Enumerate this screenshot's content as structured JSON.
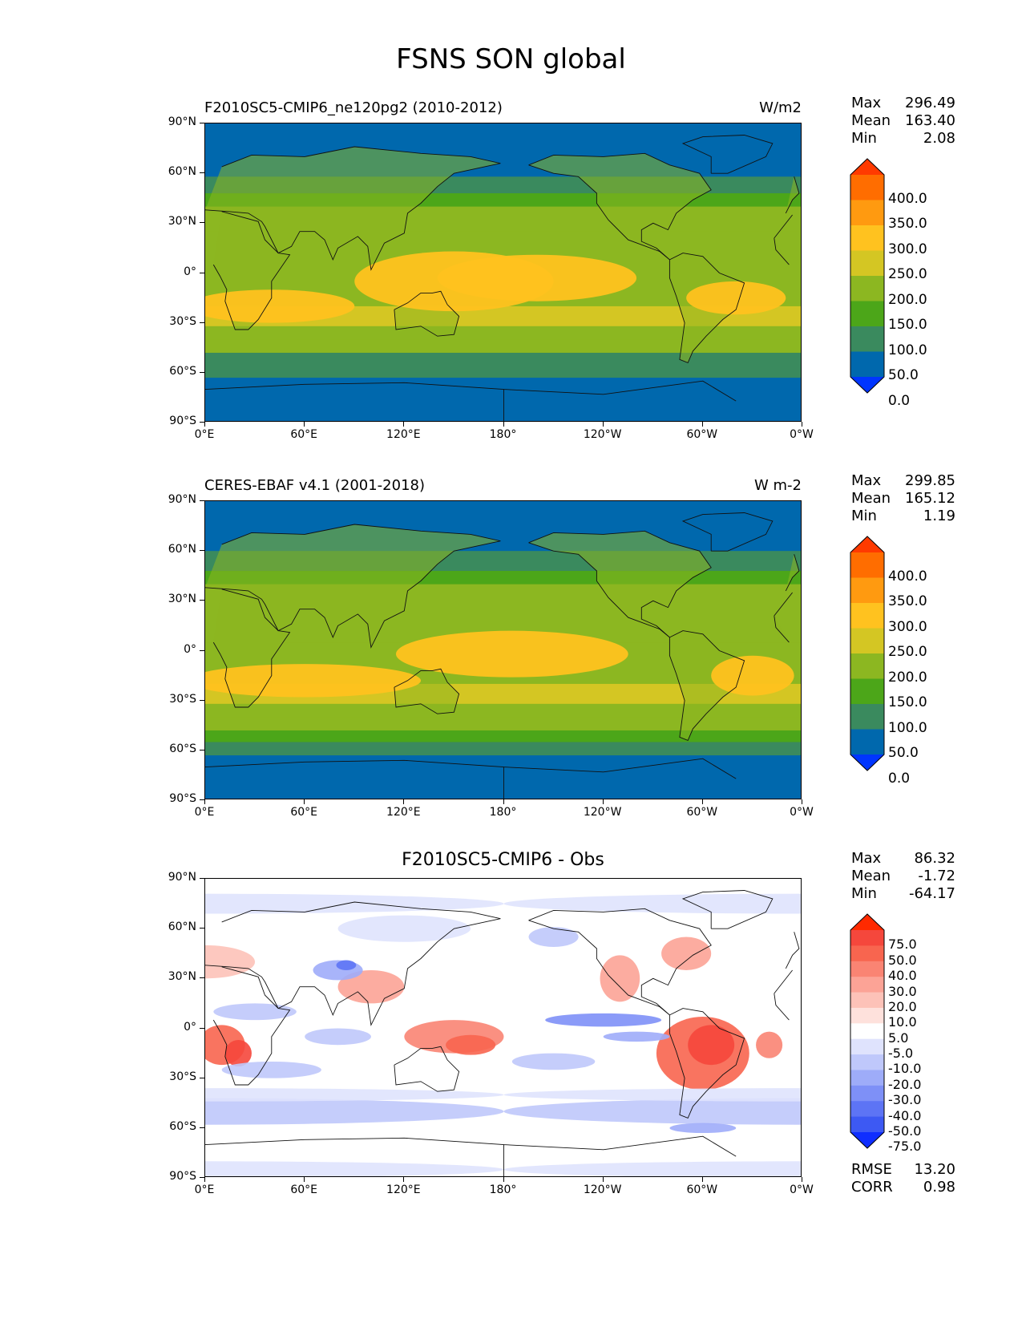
{
  "page": {
    "title": "FSNS SON global"
  },
  "axes": {
    "yticks": [
      "90°N",
      "60°N",
      "30°N",
      "0°",
      "30°S",
      "60°S",
      "90°S"
    ],
    "xticks": [
      "0°E",
      "60°E",
      "120°E",
      "180°",
      "120°W",
      "60°W",
      "0°W"
    ]
  },
  "panels": [
    {
      "title_left": "F2010SC5-CMIP6_ne120pg2 (2010-2012)",
      "title_right": "W/m2",
      "title_center": "",
      "stats": [
        {
          "label": "Max",
          "value": "296.49"
        },
        {
          "label": "Mean",
          "value": "163.40"
        },
        {
          "label": "Min",
          "value": "2.08"
        }
      ],
      "colorbar": {
        "labels": [
          "400.0",
          "350.0",
          "300.0",
          "250.0",
          "200.0",
          "150.0",
          "100.0",
          "50.0",
          "0.0"
        ],
        "colors": [
          "#ff3a00",
          "#ff6d00",
          "#ff9a10",
          "#ffc21f",
          "#d4c623",
          "#8cb721",
          "#4ca619",
          "#3a8a5e",
          "#0068ad",
          "#0035ff"
        ]
      }
    },
    {
      "title_left": "CERES-EBAF v4.1 (2001-2018)",
      "title_right": "W m-2",
      "title_center": "",
      "stats": [
        {
          "label": "Max",
          "value": "299.85"
        },
        {
          "label": "Mean",
          "value": "165.12"
        },
        {
          "label": "Min",
          "value": "1.19"
        }
      ],
      "colorbar": {
        "labels": [
          "400.0",
          "350.0",
          "300.0",
          "250.0",
          "200.0",
          "150.0",
          "100.0",
          "50.0",
          "0.0"
        ],
        "colors": [
          "#ff3a00",
          "#ff6d00",
          "#ff9a10",
          "#ffc21f",
          "#d4c623",
          "#8cb721",
          "#4ca619",
          "#3a8a5e",
          "#0068ad",
          "#0035ff"
        ]
      }
    },
    {
      "title_left": "",
      "title_right": "",
      "title_center": "F2010SC5-CMIP6 - Obs",
      "stats": [
        {
          "label": "Max",
          "value": "86.32"
        },
        {
          "label": "Mean",
          "value": "-1.72"
        },
        {
          "label": "Min",
          "value": "-64.17"
        }
      ],
      "colorbar": {
        "labels": [
          "75.0",
          "50.0",
          "40.0",
          "30.0",
          "20.0",
          "10.0",
          "5.0",
          "-5.0",
          "-10.0",
          "-20.0",
          "-30.0",
          "-40.0",
          "-50.0",
          "-75.0"
        ],
        "colors": [
          "#ff2a00",
          "#f5473c",
          "#f8654f",
          "#fa8473",
          "#fca396",
          "#fdc2b8",
          "#fee1dc",
          "#ffffff",
          "#dfe3fd",
          "#bfc8fb",
          "#9eacf9",
          "#7e90f7",
          "#5d74f5",
          "#3d59f3",
          "#0f2eff"
        ]
      },
      "extra_stats": [
        {
          "label": "RMSE",
          "value": "13.20"
        },
        {
          "label": "CORR",
          "value": "0.98"
        }
      ]
    }
  ],
  "chart_data": [
    {
      "type": "heatmap",
      "title": "F2010SC5-CMIP6_ne120pg2 (2010-2012)",
      "units": "W/m2",
      "xlabel": "",
      "ylabel": "",
      "x_ticks": [
        "0°E",
        "60°E",
        "120°E",
        "180°",
        "120°W",
        "60°W",
        "0°W"
      ],
      "y_ticks": [
        "90°N",
        "60°N",
        "30°N",
        "0°",
        "30°S",
        "60°S",
        "90°S"
      ],
      "zonal_bands": [
        {
          "lat_from": 90,
          "lat_to": 58,
          "value": 50
        },
        {
          "lat_from": 58,
          "lat_to": 48,
          "value": 100
        },
        {
          "lat_from": 48,
          "lat_to": 40,
          "value": 150
        },
        {
          "lat_from": 40,
          "lat_to": 25,
          "value": 150
        },
        {
          "lat_from": 25,
          "lat_to": 5,
          "value": 200
        },
        {
          "lat_from": 5,
          "lat_to": -20,
          "value": 200
        },
        {
          "lat_from": -20,
          "lat_to": -32,
          "value": 250
        },
        {
          "lat_from": -32,
          "lat_to": -40,
          "value": 200
        },
        {
          "lat_from": -40,
          "lat_to": -48,
          "value": 150
        },
        {
          "lat_from": -48,
          "lat_to": -55,
          "value": 100
        },
        {
          "lat_from": -55,
          "lat_to": -63,
          "value": 100
        },
        {
          "lat_from": -63,
          "lat_to": -90,
          "value": 50
        }
      ],
      "colorbar_levels": [
        0,
        50,
        100,
        150,
        200,
        250,
        300,
        350,
        400
      ],
      "stats": {
        "max": 296.49,
        "mean": 163.4,
        "min": 2.08
      }
    },
    {
      "type": "heatmap",
      "title": "CERES-EBAF v4.1 (2001-2018)",
      "units": "W m-2",
      "xlabel": "",
      "ylabel": "",
      "x_ticks": [
        "0°E",
        "60°E",
        "120°E",
        "180°",
        "120°W",
        "60°W",
        "0°W"
      ],
      "y_ticks": [
        "90°N",
        "60°N",
        "30°N",
        "0°",
        "30°S",
        "60°S",
        "90°S"
      ],
      "zonal_bands": [
        {
          "lat_from": 90,
          "lat_to": 60,
          "value": 50
        },
        {
          "lat_from": 60,
          "lat_to": 48,
          "value": 100
        },
        {
          "lat_from": 48,
          "lat_to": 40,
          "value": 150
        },
        {
          "lat_from": 40,
          "lat_to": 25,
          "value": 150
        },
        {
          "lat_from": 25,
          "lat_to": 5,
          "value": 200
        },
        {
          "lat_from": 5,
          "lat_to": -20,
          "value": 200
        },
        {
          "lat_from": -20,
          "lat_to": -32,
          "value": 250
        },
        {
          "lat_from": -32,
          "lat_to": -40,
          "value": 200
        },
        {
          "lat_from": -40,
          "lat_to": -48,
          "value": 150
        },
        {
          "lat_from": -48,
          "lat_to": -55,
          "value": 150
        },
        {
          "lat_from": -55,
          "lat_to": -63,
          "value": 100
        },
        {
          "lat_from": -63,
          "lat_to": -90,
          "value": 50
        }
      ],
      "colorbar_levels": [
        0,
        50,
        100,
        150,
        200,
        250,
        300,
        350,
        400
      ],
      "stats": {
        "max": 299.85,
        "mean": 165.12,
        "min": 1.19
      }
    },
    {
      "type": "heatmap",
      "title": "F2010SC5-CMIP6 - Obs",
      "units": "",
      "xlabel": "",
      "ylabel": "",
      "x_ticks": [
        "0°E",
        "60°E",
        "120°E",
        "180°",
        "120°W",
        "60°W",
        "0°W"
      ],
      "y_ticks": [
        "90°N",
        "60°N",
        "30°N",
        "0°",
        "30°S",
        "60°S",
        "90°S"
      ],
      "colorbar_levels": [
        -75,
        -50,
        -40,
        -30,
        -20,
        -10,
        -5,
        5,
        10,
        20,
        30,
        40,
        50,
        75
      ],
      "stats": {
        "max": 86.32,
        "mean": -1.72,
        "min": -64.17,
        "rmse": 13.2,
        "corr": 0.98
      }
    }
  ]
}
